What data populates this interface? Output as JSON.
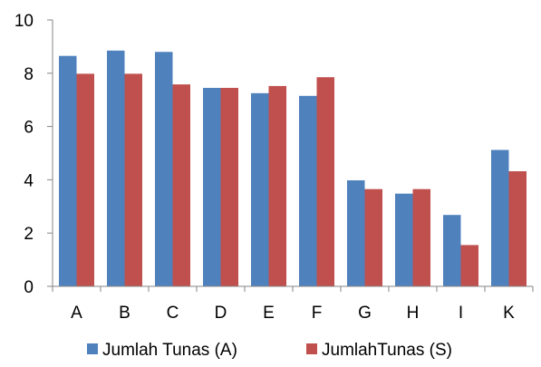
{
  "chart_data": {
    "type": "bar",
    "categories": [
      "A",
      "B",
      "C",
      "D",
      "E",
      "F",
      "G",
      "H",
      "I",
      "K"
    ],
    "series": [
      {
        "name": "Jumlah Tunas (A)",
        "color": "#4f81bd",
        "values": [
          8.65,
          8.85,
          8.8,
          7.45,
          7.25,
          7.15,
          3.98,
          3.48,
          2.68,
          5.12
        ]
      },
      {
        "name": "JumlahTunas (S)",
        "color": "#c0504d",
        "values": [
          7.98,
          7.98,
          7.58,
          7.45,
          7.52,
          7.85,
          3.65,
          3.65,
          1.55,
          4.32
        ]
      }
    ],
    "ylim": [
      0,
      10
    ],
    "yticks": [
      0,
      2,
      4,
      6,
      8,
      10
    ],
    "grid": false,
    "legend_position": "bottom"
  }
}
